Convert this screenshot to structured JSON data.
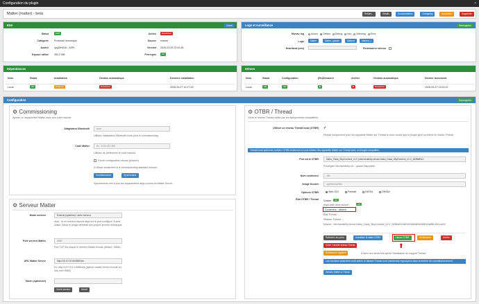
{
  "window": {
    "title": "Configuration du plugin",
    "close": "×"
  },
  "plugin": {
    "title": "Matter (matter) - beta"
  },
  "toolbar": [
    {
      "label": "Refaire...",
      "color": "#555"
    },
    {
      "label": "Détails",
      "color": "#555"
    },
    {
      "label": "Documentation",
      "color": "#3c83c4"
    },
    {
      "label": "Changelog",
      "color": "#3c83c4"
    },
    {
      "label": "Anomalies",
      "color": "#e8951b"
    },
    {
      "label": "Supprimer",
      "color": "#c9302c"
    }
  ],
  "etat": {
    "title": "Etat",
    "button": "Ouvrir",
    "statut_label": "Statut",
    "statut": "Actif",
    "categorie_label": "Catégorie",
    "categorie": "Protocole domotique",
    "auteur_label": "Auteur",
    "auteur": "zygOm4t1k - ASPL",
    "espace_label": "Espace utilisé",
    "espace": "353.2 MB",
    "action_label": "Action",
    "action": "Désactiver",
    "source_label": "Source",
    "source": "market",
    "version_label": "Version",
    "version": "2026-03-25 22:42:48",
    "prerequis_label": "Prérequis",
    "prerequis": "OK"
  },
  "logs": {
    "title": "Logs et surveillance",
    "button": "Sauvegarder",
    "niveau_label": "Niveau log",
    "levels": [
      "Aucun",
      "Défaut",
      "Debug",
      "Info",
      "Warning",
      "Error"
    ],
    "logs_label": "Logs",
    "logs_buttons": [
      "Matter",
      "Matter_update",
      "Matterd",
      "Matterd_1"
    ],
    "heartbeat_label": "Heartbeat (min)",
    "redemarrer_label": "Redémarrer démon"
  },
  "dependances": {
    "title": "Dépendances",
    "headers": [
      "Nom",
      "Statut",
      "Installation",
      "Gestion automatique",
      "Dernière installation"
    ],
    "row": {
      "nom": "Local",
      "statut": "OK",
      "installation": "Relancer",
      "gestion": "Désactiver",
      "derniere": "2026-03-27 12:27:20"
    }
  },
  "demon": {
    "title": "Démon",
    "headers": [
      "Nom",
      "Statut",
      "Configuration",
      "(Re)Démarrer",
      "Arrêter",
      "Gestion automatique",
      "Dernier lancement"
    ],
    "row": {
      "nom": "Local",
      "statut": "OK",
      "configuration": "OK",
      "redemarrer": "▶",
      "arreter": "■",
      "gestion": "Désactiver",
      "dernier": "2026-03-27 13:03:22"
    }
  },
  "configuration": {
    "title": "Configuration",
    "button": "Sauvegarder"
  },
  "commissioning": {
    "title": "Commissioning",
    "subtitle": "Ajouter un équipement Matter avec son code manuel.",
    "bt_label": "Adaptateur Bluetooth",
    "bt_value": "Auto",
    "bt_help": "Utilisez l'adaptateur Bluetooth local pour le commissioning.",
    "code_label": "Code Matter",
    "code_placeholder": "Ex : 1234-567-890",
    "code_help": "Utilisez de préférence le code manuel.",
    "force_label": "Forcer configuration réseau (avancé)",
    "force_help": "À utiliser seulement si le commissioning standard échoue.",
    "btn_commissionner": "Commissionner",
    "btn_synchroniser": "Synchroniser",
    "sync_help": "Synchroniser met à jour les équipements déjà connus du Matter Server."
  },
  "serveur": {
    "title": "Serveur Matter",
    "mode_label": "Mode serveur",
    "mode_value": "Externe (système) / autre serveur",
    "mode_help": "Auto : si un serveur répond déjà sur le port configuré, il sera utilisé. Sinon le plugin démarre son propre serveur embarqué.",
    "port_label": "Port serveur Matter",
    "port_value": "5580",
    "port_help": "Port TCP sur lequel le serveur Matter écoute (défaut : 5580).",
    "url_label": "URL Matter Server",
    "url_value": "http://10.10.10.56:5580/ws",
    "url_help": "Ex: http://127.0.0.1:5580/ws (python-matter server écoute en /ws, port 5580)",
    "token_label": "Token (optionnel)",
    "btn_ouvrir": "Ouvrir serveur",
    "btn_sauver": "Sauvé"
  },
  "otbr": {
    "title": "OTBR / Thread",
    "subtitle": "Gérer le réseau Thread utilisé par les équipements compatibles.",
    "use_label": "Utiliser un réseau Thread local (OTBR)",
    "use_help": "Requis uniquement pour les appareils Matter sur Thread si vous voulez que le plugin gère lui-même le réseau Thread.",
    "info": "Thread local optionnel. Activez OTBR seulement si vous utilisez des appareils Matter sur Thread avec un dongle compatible.",
    "port_label": "Port série OTBR",
    "port_value": "Nabu_Casa_SkyConnect_v1.0 (/dev/serial/by-id/usb-Nabu_Casa_SkyConnect_v1.0_1838af041",
    "port_help": "Privilégier /dev/serial/by-id/... quand disponible",
    "nom_label": "Nom conteneur",
    "nom_value": "otbr",
    "image_label": "Image Docker",
    "image_value": "openthread/otbr",
    "options_label": "Options OTBR",
    "options": [
      "Web GUI",
      "Firewall",
      "NAT64",
      "DNS64"
    ],
    "etat_label": "État OTBR / Thread",
    "docker_label": "Docker :",
    "docker_status": "OK",
    "image_line": "www.date dans docker :",
    "image_status": "OK",
    "conteneur_line": "Conteneur : absent",
    "etat_thread": "État Thread : -",
    "reseau": "Réseau Thread : -",
    "device": "Device : /dev/serial/by-id/usb-Nabu_Casa_SkyConnect_v1.0_1838af041802e01f8e8b0b0f5b02a688-if00-port0",
    "buttons": [
      {
        "label": "Rafraîchir les ports",
        "color": "#555"
      },
      {
        "label": "Actualiser le statut OTBR",
        "color": "#3c83c4"
      },
      {
        "label": "Lancer OTBR",
        "color": "#3e9e49"
      },
      {
        "label": "Redémarrer",
        "color": "#e8951b"
      },
      {
        "label": "Arrêter",
        "color": "#c9302c"
      },
      {
        "label": "Créer / recréer réseau Thread",
        "color": "#c9302c"
      },
      {
        "label": "Redémarrer Appareil",
        "color": "#e8951b"
      }
    ],
    "after_help": "À faire une seule fois après l'installation du support Thread",
    "info2": "Les fonctions avancées multi-admin et dataset Thread sont maintenant regroupées dans la fenêtre de commissionnement.",
    "btn_gestion": "Gestion Matter & Thread"
  }
}
